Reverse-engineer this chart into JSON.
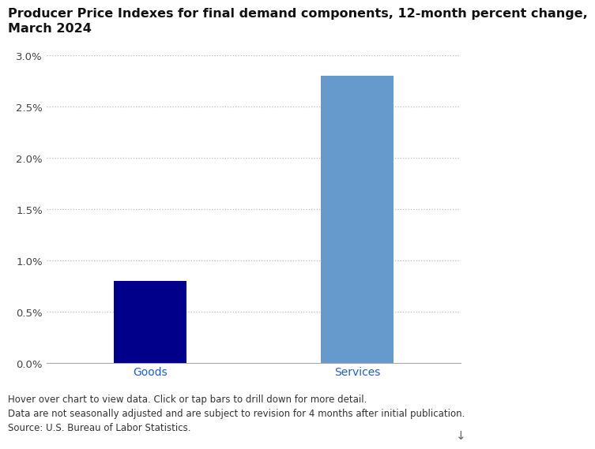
{
  "title": "Producer Price Indexes for final demand components, 12-month percent change,\nMarch 2024",
  "categories": [
    "Goods",
    "Services"
  ],
  "values": [
    0.008,
    0.028
  ],
  "bar_colors": [
    "#00008B",
    "#6699CC"
  ],
  "bar_width": 0.35,
  "ylim": [
    0,
    0.03
  ],
  "yticks": [
    0.0,
    0.005,
    0.01,
    0.015,
    0.02,
    0.025,
    0.03
  ],
  "ytick_labels": [
    "0.0%",
    "0.5%",
    "1.0%",
    "1.5%",
    "2.0%",
    "2.5%",
    "3.0%"
  ],
  "background_color": "#ffffff",
  "title_fontsize": 11.5,
  "tick_fontsize": 9.5,
  "label_fontsize": 10,
  "footer_text": "Hover over chart to view data. Click or tap bars to drill down for more detail.\nData are not seasonally adjusted and are subject to revision for 4 months after initial publication.\nSource: U.S. Bureau of Labor Statistics.",
  "footer_fontsize": 8.5,
  "grid_color": "#bbbbbb",
  "axis_color": "#aaaaaa",
  "x_label_color": "#1a5fd4"
}
